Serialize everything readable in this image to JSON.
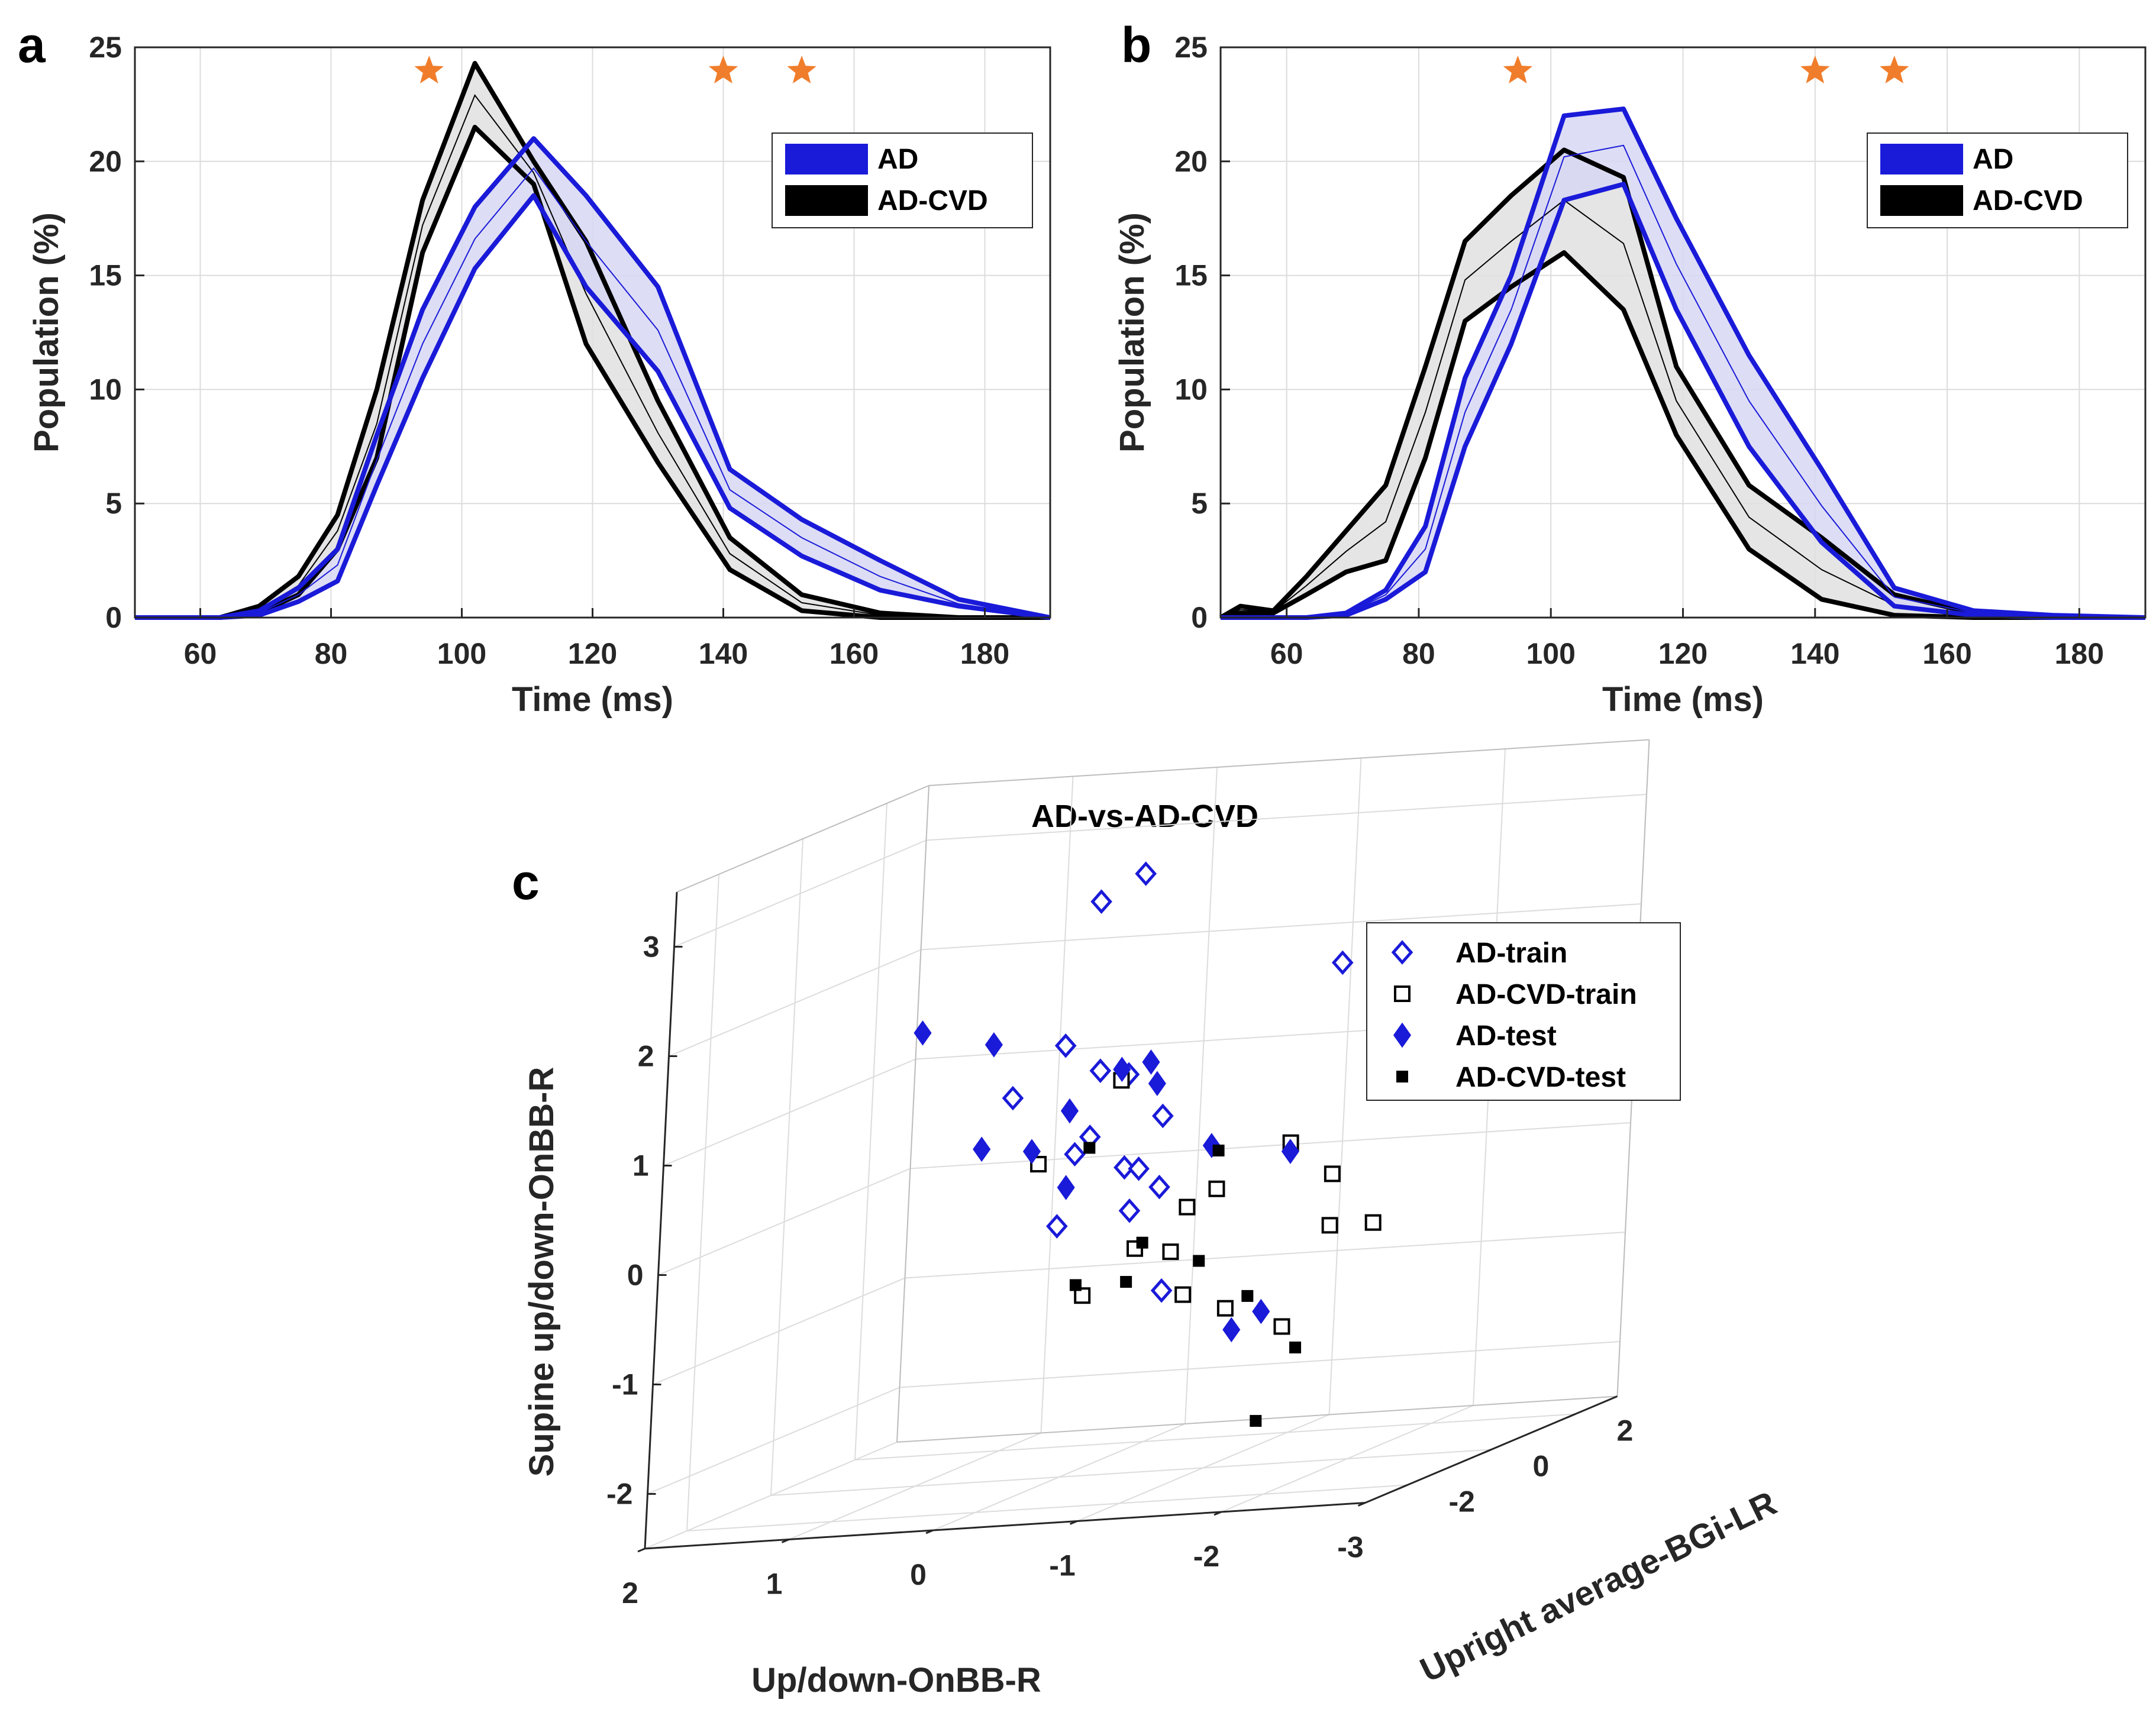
{
  "chart_data": [
    {
      "panel": "a",
      "type": "line",
      "xlabel": "Time (ms)",
      "ylabel": "Population (%)",
      "xlim": [
        50,
        190
      ],
      "ylim": [
        0,
        25
      ],
      "xticks": [
        60,
        80,
        100,
        120,
        140,
        160,
        180
      ],
      "yticks": [
        0,
        5,
        10,
        15,
        20,
        25
      ],
      "grid": true,
      "legend_position": "top-right",
      "stars_x": [
        95,
        140,
        152
      ],
      "x": [
        50,
        63,
        69,
        75,
        81,
        87,
        94,
        102,
        111,
        119,
        130,
        141,
        152,
        164,
        176,
        190
      ],
      "series": [
        {
          "name": "AD",
          "color": "#1a1ad9",
          "fill": "#d7d7f5",
          "upper": [
            0,
            0,
            0.3,
            1.3,
            3.0,
            8.0,
            13.5,
            18.0,
            21.0,
            18.5,
            14.5,
            6.5,
            4.3,
            2.5,
            0.8,
            0
          ],
          "lower": [
            0,
            0,
            0.1,
            0.7,
            1.6,
            5.8,
            10.5,
            15.3,
            18.5,
            14.5,
            10.8,
            4.8,
            2.7,
            1.2,
            0.5,
            0
          ],
          "mean": [
            0,
            0,
            0.2,
            1.0,
            2.3,
            6.9,
            12.0,
            16.6,
            19.7,
            16.5,
            12.6,
            5.6,
            3.5,
            1.8,
            0.6,
            0
          ]
        },
        {
          "name": "AD-CVD",
          "color": "#000000",
          "fill": "#e0e0e0",
          "upper": [
            0,
            0,
            0.5,
            1.8,
            4.5,
            10.0,
            18.3,
            24.3,
            20.0,
            16.5,
            9.5,
            3.5,
            1.0,
            0.2,
            0,
            0
          ],
          "lower": [
            0,
            0,
            0.2,
            1.0,
            3.0,
            7.0,
            16.0,
            21.5,
            19.0,
            12.0,
            6.8,
            2.1,
            0.3,
            0,
            0,
            0
          ],
          "mean": [
            0,
            0,
            0.35,
            1.4,
            3.8,
            8.5,
            17.2,
            22.9,
            19.5,
            14.2,
            8.1,
            2.8,
            0.65,
            0.1,
            0,
            0
          ]
        }
      ]
    },
    {
      "panel": "b",
      "type": "line",
      "xlabel": "Time (ms)",
      "ylabel": "Population (%)",
      "xlim": [
        50,
        190
      ],
      "ylim": [
        0,
        25
      ],
      "xticks": [
        60,
        80,
        100,
        120,
        140,
        160,
        180
      ],
      "yticks": [
        0,
        5,
        10,
        15,
        20,
        25
      ],
      "grid": true,
      "legend_position": "top-right",
      "stars_x": [
        95,
        140,
        152
      ],
      "x": [
        50,
        53,
        58,
        63,
        69,
        75,
        81,
        87,
        94,
        102,
        111,
        119,
        130,
        141,
        152,
        164,
        176,
        190
      ],
      "series": [
        {
          "name": "AD",
          "color": "#1a1ad9",
          "fill": "#d7d7f5",
          "upper": [
            0,
            0,
            0,
            0,
            0.2,
            1.2,
            4.0,
            10.5,
            15.0,
            22.0,
            22.3,
            17.5,
            11.5,
            6.5,
            1.3,
            0.3,
            0.1,
            0
          ],
          "lower": [
            0,
            0,
            0,
            0,
            0.1,
            0.8,
            2.0,
            7.5,
            12.0,
            18.3,
            19.0,
            13.5,
            7.5,
            3.3,
            0.5,
            0.1,
            0,
            0
          ],
          "mean": [
            0,
            0,
            0,
            0,
            0.15,
            1.0,
            3.0,
            9.0,
            13.5,
            20.2,
            20.7,
            15.5,
            9.5,
            4.9,
            0.9,
            0.2,
            0.05,
            0
          ]
        },
        {
          "name": "AD-CVD",
          "color": "#000000",
          "fill": "#e0e0e0",
          "upper": [
            0,
            0.5,
            0.3,
            1.8,
            3.8,
            5.8,
            11.0,
            16.5,
            18.5,
            20.5,
            19.3,
            11.0,
            5.8,
            3.5,
            1.0,
            0.2,
            0,
            0
          ],
          "lower": [
            0,
            0.2,
            0.2,
            1.0,
            2.0,
            2.5,
            7.0,
            13.0,
            14.5,
            16.0,
            13.5,
            8.0,
            3.0,
            0.8,
            0.1,
            0,
            0,
            0
          ],
          "mean": [
            0,
            0.35,
            0.25,
            1.4,
            2.9,
            4.2,
            9.0,
            14.8,
            16.5,
            18.3,
            16.4,
            9.5,
            4.4,
            2.1,
            0.55,
            0.1,
            0,
            0
          ]
        }
      ]
    },
    {
      "panel": "c",
      "type": "scatter",
      "title": "AD-vs-AD-CVD",
      "xlabel": "Up/down-OnBB-R",
      "ylabel": "Upright average-BGi-LR",
      "zlabel": "Supine up/down-OnBB-R",
      "xlim": [
        2,
        -3
      ],
      "ylim": [
        -3,
        3
      ],
      "zlim": [
        -2.5,
        3.5
      ],
      "xticks": [
        2,
        1,
        0,
        -1,
        -2,
        -3
      ],
      "yticks": [
        -2,
        0,
        2
      ],
      "zticks": [
        -2,
        -1,
        0,
        1,
        2,
        3
      ],
      "grid": true,
      "legend_position": "top-right",
      "series": [
        {
          "name": "AD-train",
          "marker": "diamond-open",
          "color": "#1a1ad9",
          "points": [
            [
              -0.1,
              0,
              2.75
            ],
            [
              -0.4,
              0,
              2.98
            ],
            [
              -1.8,
              0,
              2.05
            ],
            [
              0.45,
              0,
              1.0
            ],
            [
              0.1,
              0,
              1.45
            ],
            [
              -0.15,
              0,
              1.2
            ],
            [
              -0.35,
              0,
              1.15
            ],
            [
              -0.6,
              0,
              0.75
            ],
            [
              0,
              0,
              0.45
            ],
            [
              -0.1,
              0,
              0.6
            ],
            [
              -0.35,
              0,
              0.3
            ],
            [
              -0.45,
              0,
              0.28
            ],
            [
              -0.6,
              0,
              0.1
            ],
            [
              -0.4,
              0,
              -0.1
            ],
            [
              0.1,
              0,
              -0.2
            ],
            [
              -0.65,
              0,
              -0.85
            ]
          ]
        },
        {
          "name": "AD-CVD-train",
          "marker": "square-open",
          "color": "#000000",
          "points": [
            [
              0.25,
              0,
              0.38
            ],
            [
              -0.3,
              0,
              1.1
            ],
            [
              -1.0,
              0,
              0.05
            ],
            [
              -1.5,
              0,
              0.43
            ],
            [
              -1.8,
              0,
              0.12
            ],
            [
              -2.1,
              0,
              -0.35
            ],
            [
              -0.8,
              0,
              -0.1
            ],
            [
              -0.45,
              0,
              -0.45
            ],
            [
              -0.7,
              0,
              -0.5
            ],
            [
              -0.1,
              0,
              -0.85
            ],
            [
              -0.8,
              0,
              -0.9
            ],
            [
              -1.1,
              0,
              -1.05
            ],
            [
              -1.5,
              0,
              -1.25
            ],
            [
              -1.8,
              0,
              -0.35
            ]
          ]
        },
        {
          "name": "AD-test",
          "marker": "diamond-filled",
          "color": "#1a1ad9",
          "points": [
            [
              1.1,
              0,
              1.65
            ],
            [
              0.6,
              0,
              1.5
            ],
            [
              0.65,
              0,
              0.55
            ],
            [
              0.3,
              0,
              0.5
            ],
            [
              0.05,
              0,
              0.85
            ],
            [
              0.05,
              0,
              0.15
            ],
            [
              -0.55,
              0,
              1.05
            ],
            [
              -0.5,
              0,
              1.25
            ],
            [
              -0.3,
              0,
              1.2
            ],
            [
              -0.95,
              0,
              0.45
            ],
            [
              -1.5,
              0,
              0.35
            ],
            [
              -1.15,
              0,
              -1.25
            ],
            [
              -1.35,
              0,
              -1.1
            ]
          ]
        },
        {
          "name": "AD-CVD-test",
          "marker": "square-filled",
          "color": "#000000",
          "points": [
            [
              -0.1,
              0,
              0.5
            ],
            [
              -1.0,
              0,
              0.4
            ],
            [
              -0.5,
              0,
              -0.4
            ],
            [
              -0.9,
              0,
              -0.6
            ],
            [
              -0.05,
              0,
              -0.75
            ],
            [
              -0.4,
              0,
              -0.75
            ],
            [
              -1.25,
              0,
              -0.95
            ],
            [
              -1.6,
              0,
              -1.45
            ],
            [
              -1.35,
              0,
              -2.1
            ]
          ]
        }
      ]
    }
  ]
}
